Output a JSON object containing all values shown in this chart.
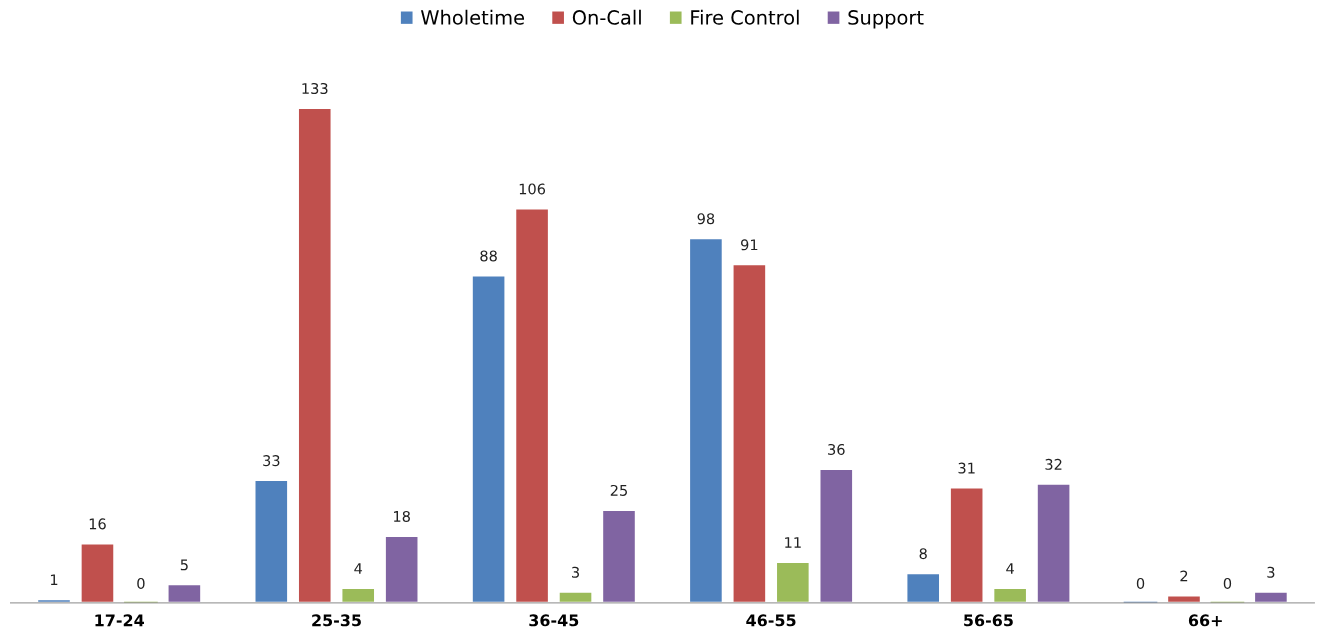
{
  "chart_data": {
    "type": "bar",
    "categories": [
      "17-24",
      "25-35",
      "36-45",
      "46-55",
      "56-65",
      "66+"
    ],
    "series": [
      {
        "name": "Wholetime",
        "color": "#4f81bd",
        "values": [
          1,
          33,
          88,
          98,
          8,
          0
        ]
      },
      {
        "name": "On-Call",
        "color": "#c0504d",
        "values": [
          16,
          133,
          106,
          91,
          31,
          2
        ]
      },
      {
        "name": "Fire Control",
        "color": "#9bbb59",
        "values": [
          0,
          4,
          3,
          11,
          4,
          0
        ]
      },
      {
        "name": "Support",
        "color": "#8064a2",
        "values": [
          5,
          18,
          25,
          36,
          32,
          3
        ]
      }
    ],
    "data_labels": true,
    "legend": "top",
    "grid": false
  }
}
